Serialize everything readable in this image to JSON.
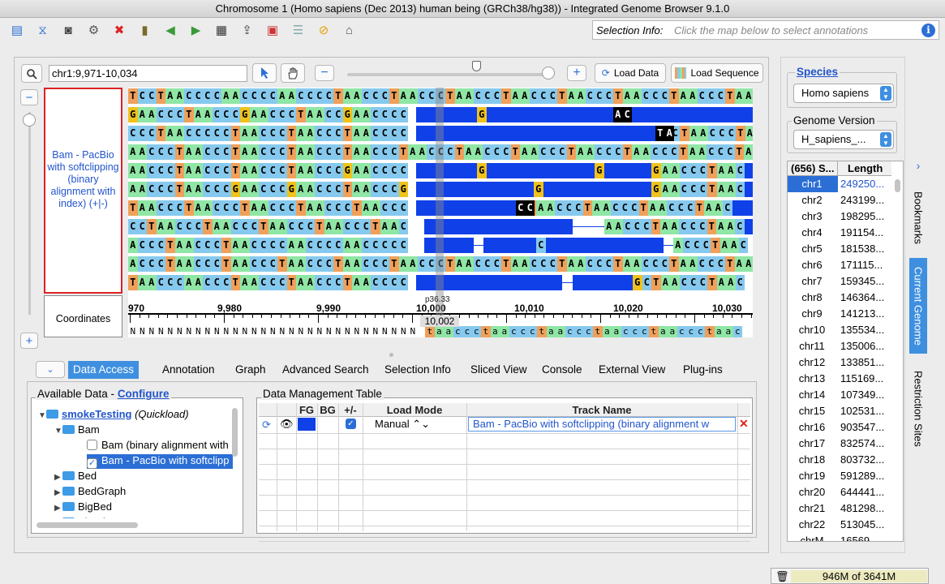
{
  "window": {
    "title": "Chromosome 1  (Homo sapiens (Dec 2013) human being (GRCh38/hg38)) - Integrated Genome Browser 9.1.0"
  },
  "toolbar": {
    "icons": [
      "open-file-icon",
      "dna-icon",
      "camera-icon",
      "gear-icon",
      "stop-icon",
      "bookmark-book-icon",
      "back-arrow-icon",
      "forward-arrow-icon",
      "film-icon",
      "upload-icon",
      "window-icon",
      "document-icon",
      "no-entry-icon",
      "home-icon"
    ],
    "selection_info_label": "Selection Info:",
    "selection_info_placeholder": "Click the map below to select annotations"
  },
  "navigation": {
    "location": "chr1:9,971-10,034",
    "load_data": "Load Data",
    "load_sequence": "Load Sequence",
    "zoom_level": 0.64
  },
  "track": {
    "label": "Bam - PacBio with softclipping (binary alignment with index) (+|-)",
    "coordinates_label": "Coordinates",
    "cytoband": "p36.33",
    "cursor_position": "10,002"
  },
  "reads": [
    "TCCTAACCCCAACCCCAACCCCTAACCCTAACCCTAACCCTAACCCTAACCCTAACCCTAACCCTAAC",
    "GAACCCTAACCCGAACCCTAACCGAACCCC",
    "CCCTAACCCCCTAACCCTAACCCTAACCCC",
    "AACCCTAACCCTAACCCTAACCCTAACCCTAACCCTAACCCTAACCCTAACCCTAACCCTAACCCTAAC",
    "AACCCTAACCCTAACCCTAACCCGAACCCC",
    "AACCCTAACCCGAACCCGAACCCTAACCCG",
    "TAACCCTAACCCTAACCCTAACCCTAACCC",
    "CCTAACCCTAACCCTAACCCTAACCCTAAC",
    "ACCCTAACCCTAACCCCAACCCCAACCCCC",
    "ACCCTAACCCTAACCCTAACCCTAACCCTAACCCTAACCCTAACCCTAACCCTAACCCTAACCCTAAC",
    "TAACCCAACCCTAACCCTAACCCTAACCCC"
  ],
  "ruler": {
    "labels": [
      "970",
      "9,980",
      "9,990",
      "10,000",
      "10,010",
      "10,020",
      "10,030"
    ]
  },
  "reference": "NNNNNNNNNNNNNNNNNNNNNNNNNNNNNNNNNNNNNNNNNNNNNNNNNNNNNNNNNNNNNNNNNNNNNNNNNNNNNNNNNNNN",
  "reference_tail": "taaccctaaccctaaccctaaccctaaccctaac",
  "tabs": [
    "Data Access",
    "Annotation",
    "Graph",
    "Advanced Search",
    "Selection Info",
    "Sliced View",
    "Console",
    "External View",
    "Plug-ins"
  ],
  "available_data": {
    "title": "Available Data - ",
    "configure": "Configure",
    "root": "smokeTesting",
    "root_suffix": "(Quickload)",
    "bam": "Bam",
    "bam_item1": "Bam (binary alignment with",
    "bam_item2": "Bam - PacBio with softclipp",
    "others": [
      "Bed",
      "BedGraph",
      "BigBed",
      "BigWig"
    ]
  },
  "data_management": {
    "title": "Data Management Table",
    "headers": [
      "FG",
      "BG",
      "+/-",
      "Load Mode",
      "Track Name"
    ],
    "row": {
      "load_mode": "Manual",
      "track_name": "Bam - PacBio with softclipping (binary alignment w",
      "fg_color": "#1040e8"
    }
  },
  "species": {
    "label": "Species",
    "value": "Homo sapiens",
    "genome_label": "Genome Version",
    "genome_value": "H_sapiens_..."
  },
  "chromosome_table": {
    "headers": [
      "(656) S...",
      "Length"
    ],
    "rows": [
      [
        "chr1",
        "249250..."
      ],
      [
        "chr2",
        "243199..."
      ],
      [
        "chr3",
        "198295..."
      ],
      [
        "chr4",
        "191154..."
      ],
      [
        "chr5",
        "181538..."
      ],
      [
        "chr6",
        "171115..."
      ],
      [
        "chr7",
        "159345..."
      ],
      [
        "chr8",
        "146364..."
      ],
      [
        "chr9",
        "141213..."
      ],
      [
        "chr10",
        "135534..."
      ],
      [
        "chr11",
        "135006..."
      ],
      [
        "chr12",
        "133851..."
      ],
      [
        "chr13",
        "115169..."
      ],
      [
        "chr14",
        "107349..."
      ],
      [
        "chr15",
        "102531..."
      ],
      [
        "chr16",
        "903547..."
      ],
      [
        "chr17",
        "832574..."
      ],
      [
        "chr18",
        "803732..."
      ],
      [
        "chr19",
        "591289..."
      ],
      [
        "chr20",
        "644441..."
      ],
      [
        "chr21",
        "481298..."
      ],
      [
        "chr22",
        "513045..."
      ],
      [
        "chrM",
        "16569"
      ]
    ]
  },
  "side_tabs": [
    "Bookmarks",
    "Current Genome",
    "Restriction Sites"
  ],
  "status": {
    "memory": "946M of 3641M"
  },
  "colors": {
    "A": "#8fe6a5",
    "C": "#86c9ee",
    "G": "#f0c21c",
    "T": "#f0a05a",
    "read": "#1040e8",
    "accent": "#3e8fe0"
  }
}
